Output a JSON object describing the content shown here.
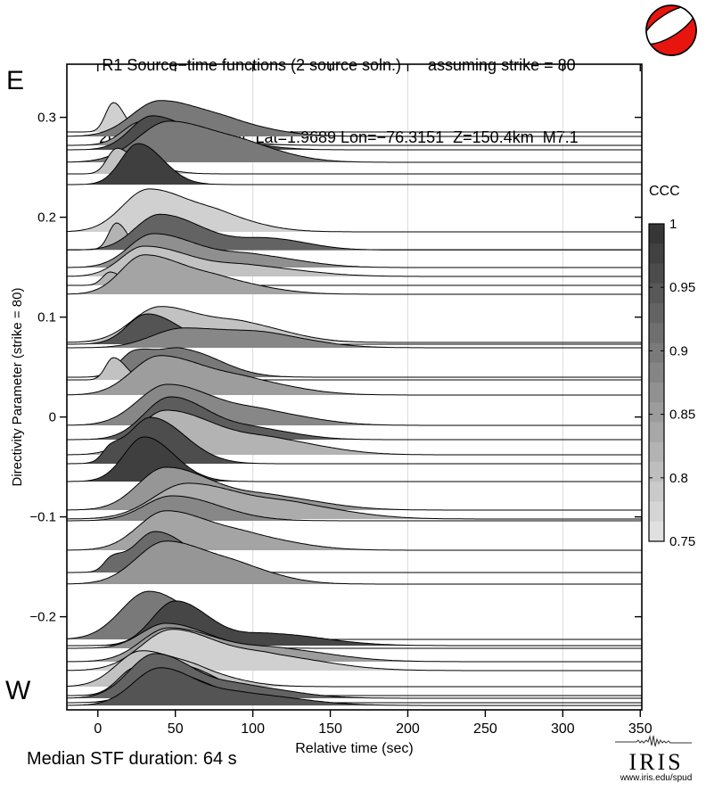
{
  "header": {
    "title": "R1 Source−time functions (2 source soln.)      assuming strike = 80",
    "subtitle": "2012/09/30 16:31:34  Lat=1.9689 Lon=−76.3151  Z=150.4km  M7.1"
  },
  "footer": {
    "median_text": "Median STF duration: 64 s"
  },
  "logo": {
    "name": "IRIS",
    "url": "www.iris.edu/spud"
  },
  "colors": {
    "beachball_red": "#e8150f",
    "gridline": "#dcdcdc",
    "cmap_dark": "#303030",
    "cmap_light": "#e6e6e6"
  },
  "chart_data": {
    "type": "area",
    "subtype": "ridgeline-stack of source-time functions",
    "title": "R1 Source−time functions (2 source soln.) assuming strike = 80",
    "xlabel": "Relative time (sec)",
    "ylabel": "Directivity Parameter (strike = 80)",
    "xlim": [
      -20,
      351
    ],
    "ylim": [
      -0.294,
      0.353
    ],
    "grid_x": [
      100,
      200,
      300
    ],
    "xticks": [
      {
        "v": 0,
        "label": "0"
      },
      {
        "v": 50,
        "label": "50"
      },
      {
        "v": 100,
        "label": "100"
      },
      {
        "v": 150,
        "label": "150"
      },
      {
        "v": 200,
        "label": "200"
      },
      {
        "v": 250,
        "label": "250"
      },
      {
        "v": 300,
        "label": "300"
      },
      {
        "v": 350,
        "label": "350"
      }
    ],
    "yticks": [
      {
        "v": 0.3,
        "label": "0.3"
      },
      {
        "v": 0.2,
        "label": "0.2"
      },
      {
        "v": 0.1,
        "label": "0.1"
      },
      {
        "v": 0,
        "label": "0"
      },
      {
        "v": -0.1,
        "label": "−0.1"
      },
      {
        "v": -0.2,
        "label": "−0.2"
      }
    ],
    "direction_labels": {
      "top": "E",
      "bottom": "W"
    },
    "colorbar": {
      "label": "CCC",
      "min": 0.75,
      "max": 1,
      "segments": 16,
      "ticks": [
        {
          "v": 1,
          "label": "1"
        },
        {
          "v": 0.95,
          "label": "0.95"
        },
        {
          "v": 0.9,
          "label": "0.9"
        },
        {
          "v": 0.85,
          "label": "0.85"
        },
        {
          "v": 0.8,
          "label": "0.8"
        },
        {
          "v": 0.75,
          "label": "0.75"
        }
      ]
    },
    "traces_note": "each trace: dp = directivity parameter (baseline), ccc = cross-correlation coefficient (gray shade), bumps = [peak_time_sec, amplitude_px, width_left_sec, width_right_sec]",
    "traces": [
      {
        "dp": 0.2854,
        "ccc": 0.78,
        "bumps": [
          [
            10,
            33,
            5,
            7
          ]
        ]
      },
      {
        "dp": 0.2809,
        "ccc": 0.9,
        "bumps": [
          [
            40,
            40,
            18,
            30
          ],
          [
            88,
            9,
            18,
            28
          ]
        ]
      },
      {
        "dp": 0.272,
        "ccc": 0.87,
        "bumps": [
          [
            28,
            26,
            12,
            20
          ],
          [
            62,
            10,
            15,
            25
          ]
        ]
      },
      {
        "dp": 0.2675,
        "ccc": 0.96,
        "bumps": [
          [
            35,
            38,
            14,
            22
          ],
          [
            78,
            10,
            15,
            25
          ]
        ]
      },
      {
        "dp": 0.255,
        "ccc": 0.9,
        "bumps": [
          [
            46,
            46,
            20,
            34
          ],
          [
            100,
            10,
            18,
            26
          ]
        ]
      },
      {
        "dp": 0.2434,
        "ccc": 0.8,
        "bumps": [
          [
            12,
            28,
            6,
            9
          ],
          [
            30,
            8,
            8,
            15
          ]
        ]
      },
      {
        "dp": 0.2327,
        "ccc": 0.98,
        "bumps": [
          [
            26,
            46,
            11,
            16
          ]
        ]
      },
      {
        "dp": 0.1854,
        "ccc": 0.78,
        "bumps": [
          [
            33,
            48,
            17,
            30
          ],
          [
            82,
            10,
            15,
            25
          ]
        ]
      },
      {
        "dp": 0.1675,
        "ccc": 0.82,
        "bumps": [
          [
            12,
            30,
            5,
            7
          ]
        ]
      },
      {
        "dp": 0.1672,
        "ccc": 0.93,
        "bumps": [
          [
            40,
            40,
            16,
            28
          ],
          [
            112,
            12,
            20,
            24
          ]
        ]
      },
      {
        "dp": 0.1496,
        "ccc": 0.87,
        "bumps": [
          [
            36,
            38,
            16,
            30
          ],
          [
            102,
            12,
            20,
            30
          ]
        ]
      },
      {
        "dp": 0.1407,
        "ccc": 0.8,
        "bumps": [
          [
            30,
            34,
            15,
            32
          ],
          [
            100,
            10,
            20,
            34
          ]
        ]
      },
      {
        "dp": 0.1318,
        "ccc": 0.82,
        "bumps": [
          [
            8,
            15,
            5,
            7
          ]
        ]
      },
      {
        "dp": 0.1229,
        "ccc": 0.84,
        "bumps": [
          [
            30,
            44,
            15,
            28
          ],
          [
            82,
            12,
            18,
            28
          ]
        ]
      },
      {
        "dp": 0.0746,
        "ccc": 0.8,
        "bumps": [
          [
            40,
            40,
            18,
            28
          ],
          [
            96,
            18,
            20,
            28
          ]
        ]
      },
      {
        "dp": 0.0729,
        "ccc": 0.95,
        "bumps": [
          [
            32,
            34,
            13,
            20
          ]
        ]
      },
      {
        "dp": 0.0693,
        "ccc": 0.88,
        "bumps": [
          [
            55,
            22,
            20,
            40
          ],
          [
            112,
            9,
            20,
            30
          ]
        ]
      },
      {
        "dp": 0.0398,
        "ccc": 0.9,
        "bumps": [
          [
            24,
            28,
            10,
            14
          ],
          [
            55,
            30,
            14,
            24
          ]
        ]
      },
      {
        "dp": 0.0371,
        "ccc": 0.8,
        "bumps": [
          [
            10,
            25,
            5,
            8
          ]
        ]
      },
      {
        "dp": 0.022,
        "ccc": 0.85,
        "bumps": [
          [
            40,
            44,
            18,
            32
          ],
          [
            100,
            12,
            20,
            30
          ]
        ]
      },
      {
        "dp": -0.0084,
        "ccc": 0.88,
        "bumps": [
          [
            45,
            46,
            19,
            32
          ],
          [
            110,
            12,
            20,
            30
          ]
        ]
      },
      {
        "dp": -0.0227,
        "ccc": 0.94,
        "bumps": [
          [
            47,
            48,
            17,
            26
          ],
          [
            105,
            10,
            18,
            25
          ]
        ]
      },
      {
        "dp": -0.0379,
        "ccc": 0.82,
        "bumps": [
          [
            44,
            50,
            18,
            34
          ],
          [
            116,
            14,
            22,
            32
          ]
        ]
      },
      {
        "dp": -0.0468,
        "ccc": 0.96,
        "bumps": [
          [
            8,
            13,
            5,
            7
          ],
          [
            34,
            52,
            14,
            22
          ]
        ]
      },
      {
        "dp": -0.0646,
        "ccc": 0.98,
        "bumps": [
          [
            30,
            50,
            13,
            19
          ]
        ]
      },
      {
        "dp": -0.0932,
        "ccc": 0.86,
        "bumps": [
          [
            44,
            48,
            18,
            32
          ],
          [
            115,
            13,
            22,
            32
          ]
        ]
      },
      {
        "dp": -0.1021,
        "ccc": 0.83,
        "bumps": [
          [
            58,
            40,
            22,
            38
          ],
          [
            130,
            12,
            22,
            34
          ]
        ]
      },
      {
        "dp": -0.1039,
        "ccc": 0.88,
        "bumps": [
          [
            48,
            28,
            18,
            30
          ]
        ]
      },
      {
        "dp": -0.1334,
        "ccc": 0.84,
        "bumps": [
          [
            44,
            44,
            18,
            30
          ],
          [
            100,
            12,
            20,
            30
          ]
        ]
      },
      {
        "dp": -0.1557,
        "ccc": 0.92,
        "bumps": [
          [
            9,
            13,
            5,
            7
          ],
          [
            37,
            46,
            14,
            22
          ]
        ]
      },
      {
        "dp": -0.1673,
        "ccc": 0.86,
        "bumps": [
          [
            44,
            48,
            19,
            30
          ],
          [
            95,
            12,
            18,
            25
          ]
        ]
      },
      {
        "dp": -0.2227,
        "ccc": 0.9,
        "bumps": [
          [
            33,
            54,
            18,
            26
          ]
        ]
      },
      {
        "dp": -0.2289,
        "ccc": 0.97,
        "bumps": [
          [
            50,
            50,
            15,
            22
          ],
          [
            112,
            13,
            20,
            34
          ]
        ]
      },
      {
        "dp": -0.2316,
        "ccc": 0.87,
        "bumps": [
          [
            44,
            28,
            16,
            26
          ]
        ]
      },
      {
        "dp": -0.245,
        "ccc": 0.85,
        "bumps": [
          [
            46,
            38,
            18,
            34
          ],
          [
            120,
            12,
            22,
            34
          ]
        ]
      },
      {
        "dp": -0.2539,
        "ccc": 0.78,
        "bumps": [
          [
            48,
            46,
            20,
            30
          ],
          [
            112,
            15,
            22,
            36
          ]
        ]
      },
      {
        "dp": -0.27,
        "ccc": 0.8,
        "bumps": [
          [
            28,
            40,
            16,
            24
          ],
          [
            66,
            12,
            14,
            25
          ]
        ]
      },
      {
        "dp": -0.2789,
        "ccc": 0.88,
        "bumps": [
          [
            24,
            30,
            11,
            14
          ],
          [
            55,
            32,
            13,
            22
          ]
        ]
      },
      {
        "dp": -0.2816,
        "ccc": 0.93,
        "bumps": [
          [
            37,
            50,
            17,
            26
          ],
          [
            96,
            12,
            18,
            30
          ]
        ]
      },
      {
        "dp": -0.2861,
        "ccc": 0.86,
        "bumps": [
          [
            44,
            34,
            17,
            28
          ]
        ]
      },
      {
        "dp": -0.2888,
        "ccc": 0.95,
        "bumps": [
          [
            40,
            42,
            17,
            24
          ],
          [
            96,
            12,
            20,
            34
          ]
        ]
      }
    ]
  }
}
